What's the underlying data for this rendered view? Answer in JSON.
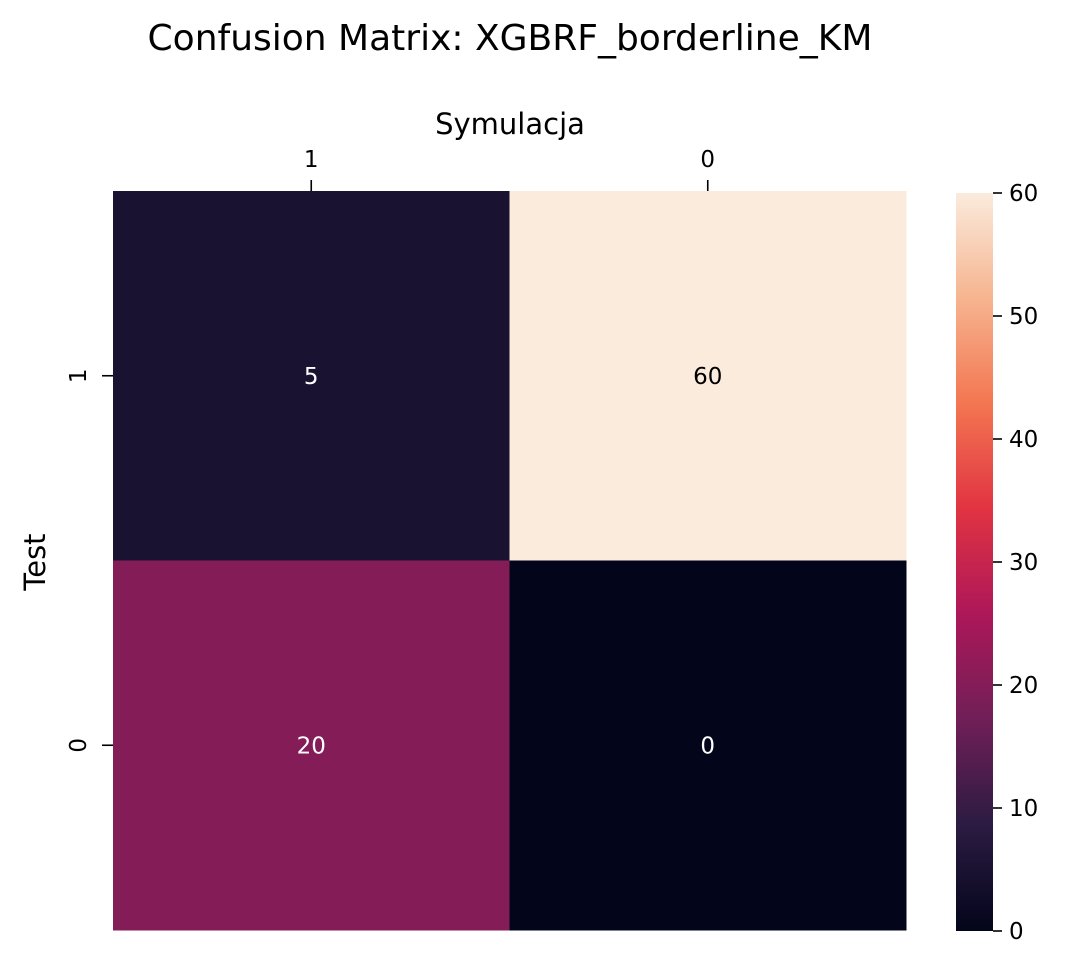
{
  "chart_data": {
    "type": "heatmap",
    "title": "Confusion Matrix: XGBRF_borderline_KM",
    "xlabel": "Symulacja",
    "ylabel": "Test",
    "x_categories": [
      "1",
      "0"
    ],
    "y_categories": [
      "1",
      "0"
    ],
    "values": [
      [
        5,
        60
      ],
      [
        20,
        0
      ]
    ],
    "cell_labels": [
      [
        "5",
        "60"
      ],
      [
        "20",
        "0"
      ]
    ],
    "colorbar": {
      "range": [
        0,
        60
      ],
      "ticks": [
        0,
        10,
        20,
        30,
        40,
        50,
        60
      ],
      "tick_labels": [
        "0",
        "10",
        "20",
        "30",
        "40",
        "50",
        "60"
      ],
      "colormap": "rocket",
      "colormap_stops": [
        "#03051a",
        "#2b1b42",
        "#701f57",
        "#ad1759",
        "#e13342",
        "#f37651",
        "#f6b48f",
        "#faebdd"
      ]
    },
    "x_axis_position": "top",
    "grid": false,
    "colors": {
      "light_text": "#ffffff",
      "dark_text": "#000000"
    }
  }
}
